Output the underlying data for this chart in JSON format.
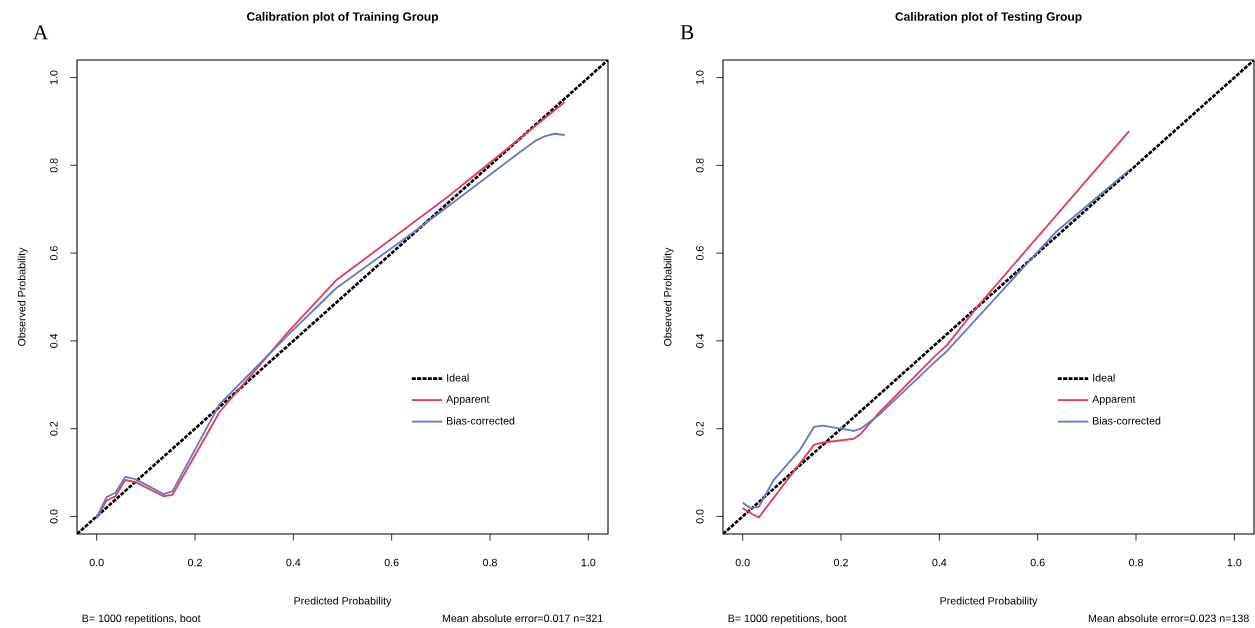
{
  "chart_data": [
    {
      "type": "line",
      "title": "Calibration plot of Training Group",
      "xlabel": "Predicted Probability",
      "ylabel": "Observed Probability",
      "annotations": [
        "A",
        "B= 1000 repetitions, boot",
        "Mean absolute error=0.017 n=321"
      ],
      "xlim": [
        -0.04,
        1.04
      ],
      "ylim": [
        -0.04,
        1.04
      ],
      "xticks": [
        {
          "value": 0,
          "label": "0.0"
        },
        {
          "value": 0.2,
          "label": "0.2"
        },
        {
          "value": 0.4,
          "label": "0.4"
        },
        {
          "value": 0.6,
          "label": "0.6"
        },
        {
          "value": 0.8,
          "label": "0.8"
        },
        {
          "value": 1,
          "label": "1.0"
        }
      ],
      "yticks": [
        {
          "value": 0,
          "label": "0.0"
        },
        {
          "value": 0.2,
          "label": "0.2"
        },
        {
          "value": 0.4,
          "label": "0.4"
        },
        {
          "value": 0.6,
          "label": "0.6"
        },
        {
          "value": 0.8,
          "label": "0.8"
        },
        {
          "value": 1,
          "label": "1.0"
        }
      ],
      "legend": "bottom right",
      "series": [
        {
          "name": "Ideal",
          "color": "#000000",
          "line_style": "dashed",
          "x": [
            -0.04,
            1.04
          ],
          "values": [
            -0.04,
            1.04
          ]
        },
        {
          "name": "Apparent",
          "color": "#e0405e",
          "line_style": "solid",
          "x": [
            0,
            0.02,
            0.038,
            0.058,
            0.079,
            0.136,
            0.154,
            0.25,
            0.389,
            0.487,
            0.715,
            0.952
          ],
          "values": [
            -0.004,
            0.036,
            0.046,
            0.083,
            0.078,
            0.046,
            0.049,
            0.238,
            0.42,
            0.538,
            0.729,
            0.944
          ]
        },
        {
          "name": "Bias-corrected",
          "color": "#6a7bbb",
          "line_style": "solid",
          "x": [
            0,
            0.02,
            0.038,
            0.058,
            0.079,
            0.136,
            0.154,
            0.25,
            0.389,
            0.487,
            0.65,
            0.715,
            0.862,
            0.894,
            0.911,
            0.931,
            0.952
          ],
          "values": [
            -0.002,
            0.044,
            0.054,
            0.09,
            0.085,
            0.051,
            0.057,
            0.256,
            0.413,
            0.52,
            0.652,
            0.707,
            0.831,
            0.857,
            0.866,
            0.872,
            0.869
          ]
        }
      ]
    },
    {
      "type": "line",
      "title": "Calibration plot of Testing Group",
      "xlabel": "Predicted Probability",
      "ylabel": "Observed Probability",
      "annotations": [
        "B",
        "B= 1000 repetitions, boot",
        "Mean absolute error=0.023 n=138"
      ],
      "xlim": [
        -0.04,
        1.04
      ],
      "ylim": [
        -0.04,
        1.04
      ],
      "xticks": [
        {
          "value": 0,
          "label": "0.0"
        },
        {
          "value": 0.2,
          "label": "0.2"
        },
        {
          "value": 0.4,
          "label": "0.4"
        },
        {
          "value": 0.6,
          "label": "0.6"
        },
        {
          "value": 0.8,
          "label": "0.8"
        },
        {
          "value": 1,
          "label": "1.0"
        }
      ],
      "yticks": [
        {
          "value": 0,
          "label": "0.0"
        },
        {
          "value": 0.2,
          "label": "0.2"
        },
        {
          "value": 0.4,
          "label": "0.4"
        },
        {
          "value": 0.6,
          "label": "0.6"
        },
        {
          "value": 0.8,
          "label": "0.8"
        },
        {
          "value": 1,
          "label": "1.0"
        }
      ],
      "legend": "bottom right",
      "series": [
        {
          "name": "Ideal",
          "color": "#000000",
          "line_style": "dashed",
          "x": [
            -0.04,
            1.04
          ],
          "values": [
            -0.04,
            1.04
          ]
        },
        {
          "name": "Apparent",
          "color": "#e0405e",
          "line_style": "solid",
          "x": [
            0,
            0.02,
            0.033,
            0.145,
            0.161,
            0.226,
            0.24,
            0.279,
            0.389,
            0.416,
            0.482,
            0.786
          ],
          "values": [
            0.019,
            0.005,
            -0.002,
            0.163,
            0.168,
            0.177,
            0.188,
            0.238,
            0.363,
            0.391,
            0.484,
            0.878
          ]
        },
        {
          "name": "Bias-corrected",
          "color": "#6a7bbb",
          "line_style": "solid",
          "x": [
            0,
            0.016,
            0.033,
            0.063,
            0.116,
            0.145,
            0.163,
            0.226,
            0.24,
            0.279,
            0.389,
            0.413,
            0.637,
            0.786
          ],
          "values": [
            0.031,
            0.019,
            0.022,
            0.083,
            0.151,
            0.204,
            0.207,
            0.195,
            0.2,
            0.233,
            0.35,
            0.374,
            0.648,
            0.789
          ]
        }
      ]
    }
  ]
}
